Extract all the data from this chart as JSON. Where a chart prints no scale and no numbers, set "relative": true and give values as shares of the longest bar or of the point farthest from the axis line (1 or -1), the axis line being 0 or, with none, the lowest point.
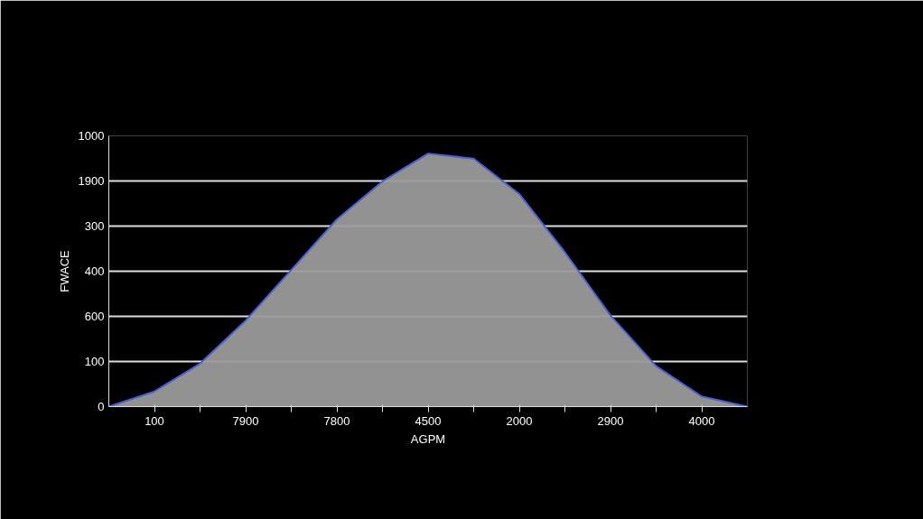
{
  "chart_data": {
    "type": "area",
    "xlabel": "AGPM",
    "ylabel": "FWACE",
    "relative": true,
    "categories": [
      null,
      "100",
      null,
      "7900",
      null,
      "7800",
      null,
      "4500",
      null,
      "2000",
      null,
      "2900",
      null,
      "4000",
      null
    ],
    "series": [
      {
        "color": "#4a5fd0",
        "values": [
          0,
          0.06,
          0.17,
          0.34,
          0.54,
          0.74,
          0.89,
          1.0,
          0.98,
          0.84,
          0.61,
          0.36,
          0.16,
          0.04,
          0
        ]
      }
    ],
    "annotations": [
      "0",
      "100",
      "600",
      "400",
      "300",
      "1900",
      "1000"
    ],
    "grid": "y"
  }
}
